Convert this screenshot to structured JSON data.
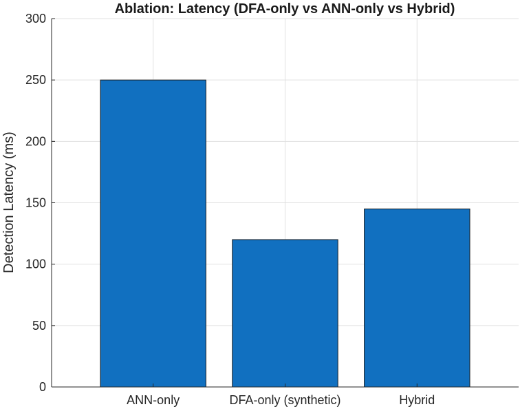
{
  "chart_data": {
    "type": "bar",
    "title": "Ablation: Latency (DFA-only vs ANN-only vs Hybrid)",
    "xlabel": "",
    "ylabel": "Detection Latency (ms)",
    "categories": [
      "ANN-only",
      "DFA-only (synthetic)",
      "Hybrid"
    ],
    "values": [
      250,
      120,
      145
    ],
    "ylim": [
      0,
      300
    ],
    "yticks": [
      0,
      50,
      100,
      150,
      200,
      250,
      300
    ],
    "grid": true,
    "legend": "none",
    "bar_color": "#1170c0",
    "edge_color": "#1a1a1a"
  }
}
